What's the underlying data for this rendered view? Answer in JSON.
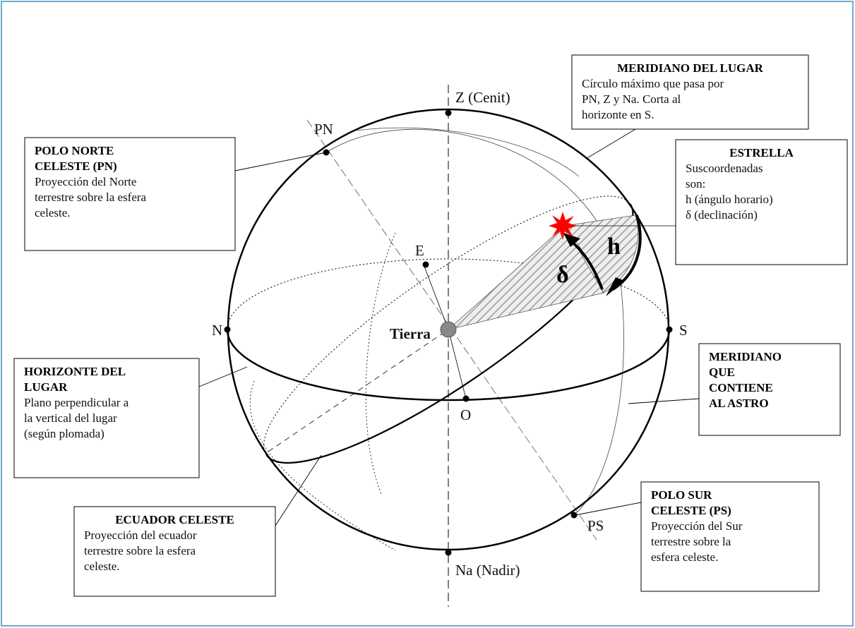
{
  "points": [
    {
      "label": "Z (Cenit)"
    },
    {
      "label": "Na (Nadir)"
    },
    {
      "label": "N"
    },
    {
      "label": "S"
    },
    {
      "label": "PN"
    },
    {
      "label": "PS"
    },
    {
      "label": "E"
    },
    {
      "label": "O"
    },
    {
      "label": "Tierra"
    }
  ],
  "symbols": {
    "delta": "δ",
    "h": "h"
  },
  "boxes": [
    {
      "title": [
        "MERIDIANO DEL LUGAR"
      ],
      "body": [
        "Círculo máximo que pasa por",
        "PN, Z y Na. Corta al",
        "horizonte en S."
      ]
    },
    {
      "title": [
        "POLO NORTE",
        "CELESTE (PN)"
      ],
      "body": [
        "Proyección del Norte",
        "terrestre sobre la esfera",
        "celeste."
      ]
    },
    {
      "title": [
        "ESTRELLA"
      ],
      "body": [
        "Suscoordenadas",
        "son:",
        "h (ángulo horario)",
        "δ (declinación)"
      ]
    },
    {
      "title": [
        "HORIZONTE DEL",
        "LUGAR"
      ],
      "body": [
        "Plano perpendicular a",
        "la vertical del lugar",
        "(según plomada)"
      ]
    },
    {
      "title": [
        "MERIDIANO",
        "QUE",
        "CONTIENE",
        "AL ASTRO"
      ],
      "body": []
    },
    {
      "title": [
        "ECUADOR CELESTE"
      ],
      "body": [
        "Proyección del ecuador",
        "terrestre sobre la esfera",
        "celeste."
      ]
    },
    {
      "title": [
        "POLO SUR",
        "CELESTE (PS)"
      ],
      "body": [
        "Proyección del Sur",
        "terrestre sobre la",
        "esfera celeste."
      ]
    }
  ]
}
